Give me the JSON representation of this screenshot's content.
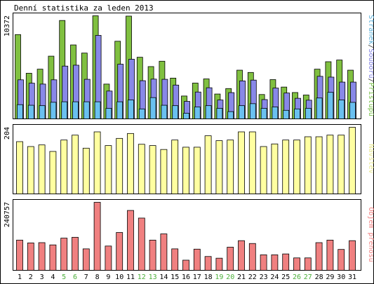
{
  "chart_data": {
    "type": "bar",
    "title": "Denní statistika za leden 2013",
    "days": [
      "1",
      "2",
      "3",
      "4",
      "5",
      "6",
      "7",
      "8",
      "9",
      "10",
      "11",
      "12",
      "13",
      "14",
      "15",
      "16",
      "17",
      "18",
      "19",
      "20",
      "21",
      "22",
      "23",
      "24",
      "25",
      "26",
      "27",
      "28",
      "29",
      "30",
      "31"
    ],
    "weekend_days": [
      "5",
      "6",
      "12",
      "13",
      "19",
      "20",
      "26",
      "27"
    ],
    "colors": {
      "axis": "#000000",
      "weekday_label": "#000000",
      "weekend_label": "#4caf3a"
    },
    "panels": [
      {
        "name": "hits",
        "ymax_label": "10372",
        "ymax": 10372,
        "legend_parts": [
          {
            "text": "Stránek",
            "color": "#5aafd8"
          },
          {
            "text": "/",
            "color": "#333333"
          },
          {
            "text": "Souborů",
            "color": "#8080e0"
          },
          {
            "text": "/",
            "color": "#333333"
          },
          {
            "text": "Přístupů",
            "color": "#7ac04a"
          }
        ],
        "series": [
          {
            "name": "Přístupů",
            "color": "#80c040",
            "values": [
              8480,
              4590,
              5000,
              6310,
              9900,
              7440,
              6620,
              10372,
              3500,
              7810,
              10340,
              6200,
              5260,
              5800,
              4100,
              2300,
              3600,
              4020,
              2500,
              3050,
              4900,
              4670,
              2450,
              3950,
              3200,
              2650,
              2400,
              5000,
              5750,
              5920,
              4900
            ]
          },
          {
            "name": "Souborů",
            "color": "#8888e8",
            "values": [
              3930,
              3590,
              3500,
              3930,
              5310,
              5400,
              3980,
              8400,
              2800,
              5500,
              6000,
              3840,
              4000,
              3980,
              3400,
              1760,
              2700,
              3130,
              1900,
              2640,
              3820,
              3900,
              1940,
              3100,
              2600,
              2070,
              1880,
              4280,
              4200,
              3700,
              3700
            ]
          },
          {
            "name": "Stránek",
            "color": "#6ac0f0",
            "values": [
              1430,
              1370,
              1330,
              1670,
              1720,
              1720,
              1720,
              1720,
              1060,
              1720,
              1900,
              1000,
              2140,
              1370,
              1330,
              570,
              1200,
              1330,
              1060,
              730,
              1330,
              1530,
              1060,
              1200,
              860,
              1000,
              1060,
              2100,
              2670,
              1900,
              1660
            ]
          }
        ]
      },
      {
        "name": "visits",
        "ymax_label": "204",
        "ymax": 204,
        "legend_parts": [
          {
            "text": "Návštěv",
            "color": "#e8e890"
          }
        ],
        "series": [
          {
            "name": "Návštěv",
            "color": "#ffffa0",
            "values": [
              160,
              145,
              150,
              130,
              165,
              180,
              140,
              190,
              148,
              170,
              185,
              152,
              148,
              136,
              165,
              143,
              143,
              178,
              163,
              165,
              190,
              190,
              145,
              153,
              165,
              165,
              175,
              175,
              180,
              180,
              204
            ]
          }
        ]
      },
      {
        "name": "traffic",
        "ymax_label": "240757",
        "ymax": 240757,
        "legend_parts": [
          {
            "text": "Objem přenosu",
            "color": "#f08080"
          }
        ],
        "series": [
          {
            "name": "Objem přenosu",
            "color": "#f08080",
            "values": [
              107000,
              97000,
              98000,
              90000,
              114000,
              117000,
              76000,
              240757,
              86000,
              134000,
              212000,
              185000,
              107000,
              129000,
              76000,
              36000,
              75000,
              49000,
              43000,
              82000,
              105000,
              95000,
              55000,
              55000,
              58000,
              44000,
              44000,
              98000,
              107000,
              74000,
              105000
            ]
          }
        ]
      }
    ]
  }
}
